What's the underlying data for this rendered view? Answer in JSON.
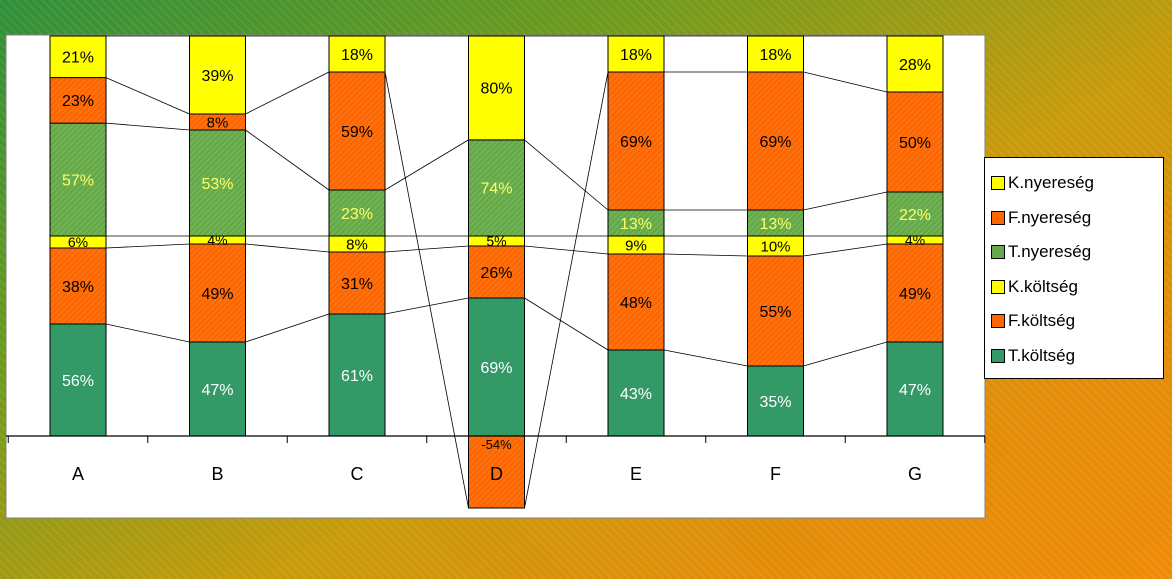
{
  "chart_data": {
    "type": "bar",
    "stacked": true,
    "normalized": true,
    "categories": [
      "A",
      "B",
      "C",
      "D",
      "E",
      "F",
      "G"
    ],
    "series": [
      {
        "name": "T.költség",
        "color": "#339966",
        "label_color": "#ffffff",
        "values": [
          56,
          47,
          61,
          69,
          43,
          35,
          47
        ],
        "labels": [
          "56%",
          "47%",
          "61%",
          "69%",
          "43%",
          "35%",
          "47%"
        ]
      },
      {
        "name": "F.költség",
        "color": "#ff6600",
        "label_color": "#000000",
        "values": [
          38,
          49,
          31,
          26,
          48,
          55,
          49
        ],
        "labels": [
          "38%",
          "49%",
          "31%",
          "26%",
          "48%",
          "55%",
          "49%"
        ]
      },
      {
        "name": "K.költség",
        "color": "#ffff00",
        "label_color": "#000000",
        "values": [
          6,
          4,
          8,
          5,
          9,
          10,
          4
        ],
        "labels": [
          "6%",
          "4%",
          "8%",
          "5%",
          "9%",
          "10%",
          "4%"
        ]
      },
      {
        "name": "T.nyereség",
        "color": "#66a84a",
        "label_color": "#ffff66",
        "values": [
          57,
          53,
          23,
          74,
          13,
          13,
          22
        ],
        "labels": [
          "57%",
          "53%",
          "23%",
          "74%",
          "13%",
          "13%",
          "22%"
        ]
      },
      {
        "name": "F.nyereség",
        "color": "#ff6600",
        "label_color": "#000000",
        "values": [
          23,
          8,
          59,
          -54,
          69,
          69,
          50
        ],
        "labels": [
          "23%",
          "8%",
          "59%",
          "-54%",
          "69%",
          "69%",
          "50%"
        ]
      },
      {
        "name": "K.nyereség",
        "color": "#ffff00",
        "label_color": "#000000",
        "values": [
          21,
          39,
          18,
          80,
          18,
          18,
          28
        ],
        "labels": [
          "21%",
          "39%",
          "18%",
          "80%",
          "18%",
          "18%",
          "28%"
        ]
      }
    ],
    "legend_position": "right",
    "series_lines": true,
    "grid": false
  }
}
